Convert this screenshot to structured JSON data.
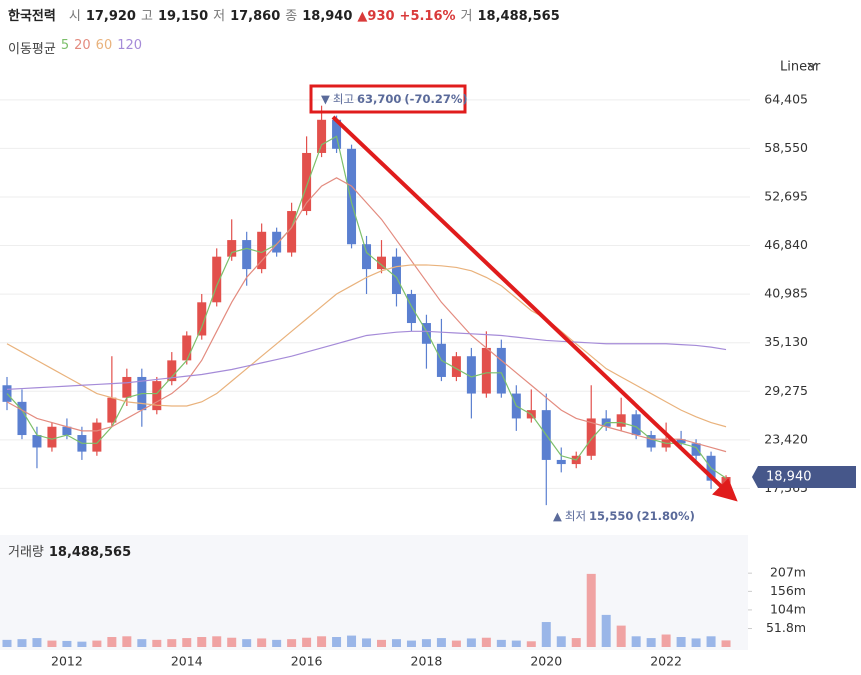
{
  "header": {
    "name": "한국전력",
    "open_label": "시",
    "open": "17,920",
    "high_label": "고",
    "high": "19,150",
    "low_label": "저",
    "low": "17,860",
    "close_label": "종",
    "close": "18,940",
    "change": "▲930",
    "change_pct": "+5.16%",
    "volume_label": "거",
    "volume": "18,488,565"
  },
  "scale_menu": "Linear",
  "chart_data": [
    {
      "type": "candlestick",
      "legend_title": "이동평균",
      "up_color": "#e2504c",
      "down_color": "#5a7fd0",
      "xlim": [
        2011,
        2023.5
      ],
      "x": [
        2011,
        2011.25,
        2011.5,
        2011.75,
        2012,
        2012.25,
        2012.5,
        2012.75,
        2013,
        2013.25,
        2013.5,
        2013.75,
        2014,
        2014.25,
        2014.5,
        2014.75,
        2015,
        2015.25,
        2015.5,
        2015.75,
        2016,
        2016.25,
        2016.5,
        2016.75,
        2017,
        2017.25,
        2017.5,
        2017.75,
        2018,
        2018.25,
        2018.5,
        2018.75,
        2019,
        2019.25,
        2019.5,
        2019.75,
        2020,
        2020.25,
        2020.5,
        2020.75,
        2021,
        2021.25,
        2021.5,
        2021.75,
        2022,
        2022.25,
        2022.5,
        2022.75,
        2023
      ],
      "open": [
        30000,
        28000,
        24000,
        22500,
        25000,
        24000,
        22000,
        25500,
        28500,
        31000,
        27000,
        30500,
        33000,
        36000,
        40000,
        45500,
        47500,
        44000,
        48500,
        46000,
        51000,
        58000,
        62000,
        58500,
        47000,
        44000,
        45500,
        41000,
        37500,
        35000,
        31000,
        33500,
        29000,
        34500,
        29000,
        26000,
        27000,
        21000,
        20500,
        21500,
        26000,
        25000,
        26500,
        24000,
        22500,
        23500,
        23000,
        21500,
        17920
      ],
      "high": [
        31000,
        29500,
        25000,
        25500,
        26000,
        25000,
        26000,
        33500,
        32000,
        32000,
        31000,
        34000,
        36500,
        41000,
        46500,
        50000,
        48500,
        49500,
        49000,
        52000,
        60000,
        63700,
        62500,
        59000,
        48000,
        47500,
        46500,
        41500,
        38500,
        38000,
        34000,
        34500,
        36500,
        35500,
        30000,
        29500,
        29000,
        22500,
        22000,
        30000,
        27000,
        28500,
        27000,
        24500,
        25500,
        24500,
        23500,
        22000,
        19150
      ],
      "low": [
        27000,
        23500,
        20000,
        22000,
        23500,
        21000,
        21500,
        25000,
        27500,
        25000,
        26500,
        30000,
        32500,
        35500,
        39500,
        45000,
        42000,
        43500,
        45500,
        45500,
        50500,
        57500,
        58000,
        46500,
        41000,
        43500,
        39500,
        36500,
        32000,
        30500,
        30500,
        26000,
        28500,
        28500,
        24500,
        25500,
        15550,
        19500,
        20000,
        21000,
        24500,
        24500,
        23500,
        22000,
        22000,
        22500,
        21000,
        17500,
        17860
      ],
      "close": [
        28000,
        24000,
        22500,
        25000,
        24000,
        22000,
        25500,
        28500,
        31000,
        27000,
        30500,
        33000,
        36000,
        40000,
        45500,
        47500,
        44000,
        48500,
        46000,
        51000,
        58000,
        62000,
        58500,
        47000,
        44000,
        45500,
        41000,
        37500,
        35000,
        31000,
        33500,
        29000,
        34500,
        29000,
        26000,
        27000,
        21000,
        20500,
        21500,
        26000,
        25000,
        26500,
        24000,
        22500,
        23500,
        23000,
        21500,
        18500,
        18940
      ],
      "last_label": "18,940",
      "ylim": [
        14000,
        68000
      ],
      "yticks": [
        {
          "value": 64405,
          "label": "64,405"
        },
        {
          "value": 58550,
          "label": "58,550"
        },
        {
          "value": 52695,
          "label": "52,695"
        },
        {
          "value": 46840,
          "label": "46,840"
        },
        {
          "value": 40985,
          "label": "40,985"
        },
        {
          "value": 35130,
          "label": "35,130"
        },
        {
          "value": 29275,
          "label": "29,275"
        },
        {
          "value": 23420,
          "label": "23,420"
        },
        {
          "value": 17565,
          "label": "17,565"
        }
      ],
      "grid": true,
      "high_annotation": {
        "marker": "▼",
        "label": "최고",
        "value": "63,700",
        "change": "(-70.27%)"
      },
      "low_annotation": {
        "marker": "▲",
        "label": "최저",
        "value": "15,550",
        "change": "(21.80%)"
      },
      "series": [
        {
          "name": "5",
          "color": "#7cbf6a",
          "values": [
            29000,
            27000,
            24000,
            23500,
            24000,
            23000,
            23000,
            25000,
            28500,
            29000,
            29000,
            31000,
            33000,
            37000,
            42000,
            46000,
            46500,
            46000,
            47000,
            49000,
            54000,
            59000,
            60000,
            52000,
            46000,
            44500,
            43000,
            39500,
            36500,
            33000,
            32000,
            31000,
            31500,
            31500,
            27500,
            26500,
            24000,
            21500,
            21000,
            23500,
            25500,
            25500,
            25000,
            23500,
            23000,
            23000,
            22500,
            20000,
            18800
          ]
        },
        {
          "name": "20",
          "color": "#e38b7f",
          "values": [
            28000,
            27000,
            26000,
            25500,
            25000,
            24500,
            24500,
            25000,
            26000,
            27000,
            28000,
            29000,
            30500,
            33000,
            36500,
            40000,
            43000,
            45000,
            47000,
            49000,
            52000,
            54000,
            55000,
            54000,
            52000,
            50000,
            47500,
            45000,
            42500,
            40000,
            38000,
            36000,
            34500,
            33000,
            31500,
            30000,
            28500,
            27000,
            26000,
            25500,
            25000,
            24500,
            24000,
            23500,
            23500,
            23500,
            23000,
            22500,
            22000
          ]
        },
        {
          "name": "60",
          "color": "#e9b27c",
          "values": [
            35000,
            34000,
            33000,
            32000,
            31000,
            30000,
            29000,
            28500,
            28000,
            27800,
            27600,
            27500,
            27500,
            28000,
            29000,
            30500,
            32000,
            33500,
            35000,
            36500,
            38000,
            39500,
            41000,
            42000,
            43000,
            43800,
            44300,
            44500,
            44500,
            44400,
            44200,
            43800,
            43000,
            42000,
            40500,
            39000,
            38000,
            36500,
            35000,
            33500,
            32000,
            31000,
            30000,
            29000,
            28000,
            27000,
            26200,
            25500,
            25000
          ]
        },
        {
          "name": "120",
          "color": "#a58bd8",
          "values": [
            29500,
            29600,
            29700,
            29800,
            29900,
            30000,
            30100,
            30200,
            30300,
            30500,
            30700,
            30900,
            31100,
            31300,
            31600,
            31900,
            32300,
            32700,
            33100,
            33500,
            34000,
            34500,
            35000,
            35500,
            36000,
            36200,
            36400,
            36500,
            36500,
            36400,
            36300,
            36200,
            36100,
            36000,
            35800,
            35600,
            35400,
            35300,
            35200,
            35100,
            35000,
            35000,
            35000,
            35000,
            35000,
            34900,
            34800,
            34600,
            34300
          ]
        }
      ]
    },
    {
      "type": "bar",
      "title": "거래량",
      "total_label": "18,488,565",
      "up_color": "#f0a3a3",
      "down_color": "#9ab6e8",
      "xlim": [
        2011,
        2023.5
      ],
      "x": [
        2011,
        2011.25,
        2011.5,
        2011.75,
        2012,
        2012.25,
        2012.5,
        2012.75,
        2013,
        2013.25,
        2013.5,
        2013.75,
        2014,
        2014.25,
        2014.5,
        2014.75,
        2015,
        2015.25,
        2015.5,
        2015.75,
        2016,
        2016.25,
        2016.5,
        2016.75,
        2017,
        2017.25,
        2017.5,
        2017.75,
        2018,
        2018.25,
        2018.5,
        2018.75,
        2019,
        2019.25,
        2019.5,
        2019.75,
        2020,
        2020.25,
        2020.5,
        2020.75,
        2021,
        2021.25,
        2021.5,
        2021.75,
        2022,
        2022.25,
        2022.5,
        2022.75,
        2023
      ],
      "values": [
        20,
        22,
        25,
        18,
        17,
        15,
        18,
        28,
        30,
        22,
        20,
        22,
        25,
        28,
        30,
        26,
        22,
        24,
        20,
        22,
        26,
        30,
        28,
        32,
        24,
        20,
        22,
        18,
        22,
        25,
        18,
        24,
        26,
        20,
        18,
        16,
        70,
        30,
        25,
        205,
        90,
        60,
        30,
        25,
        35,
        28,
        24,
        30,
        18.49
      ],
      "ylim": [
        0,
        300
      ],
      "yticks": [
        {
          "value": 207,
          "label": "207m"
        },
        {
          "value": 156,
          "label": "156m"
        },
        {
          "value": 104,
          "label": "104m"
        },
        {
          "value": 51.8,
          "label": "51.8m"
        }
      ],
      "xticks": [
        2012,
        2014,
        2016,
        2018,
        2020,
        2022
      ]
    }
  ]
}
